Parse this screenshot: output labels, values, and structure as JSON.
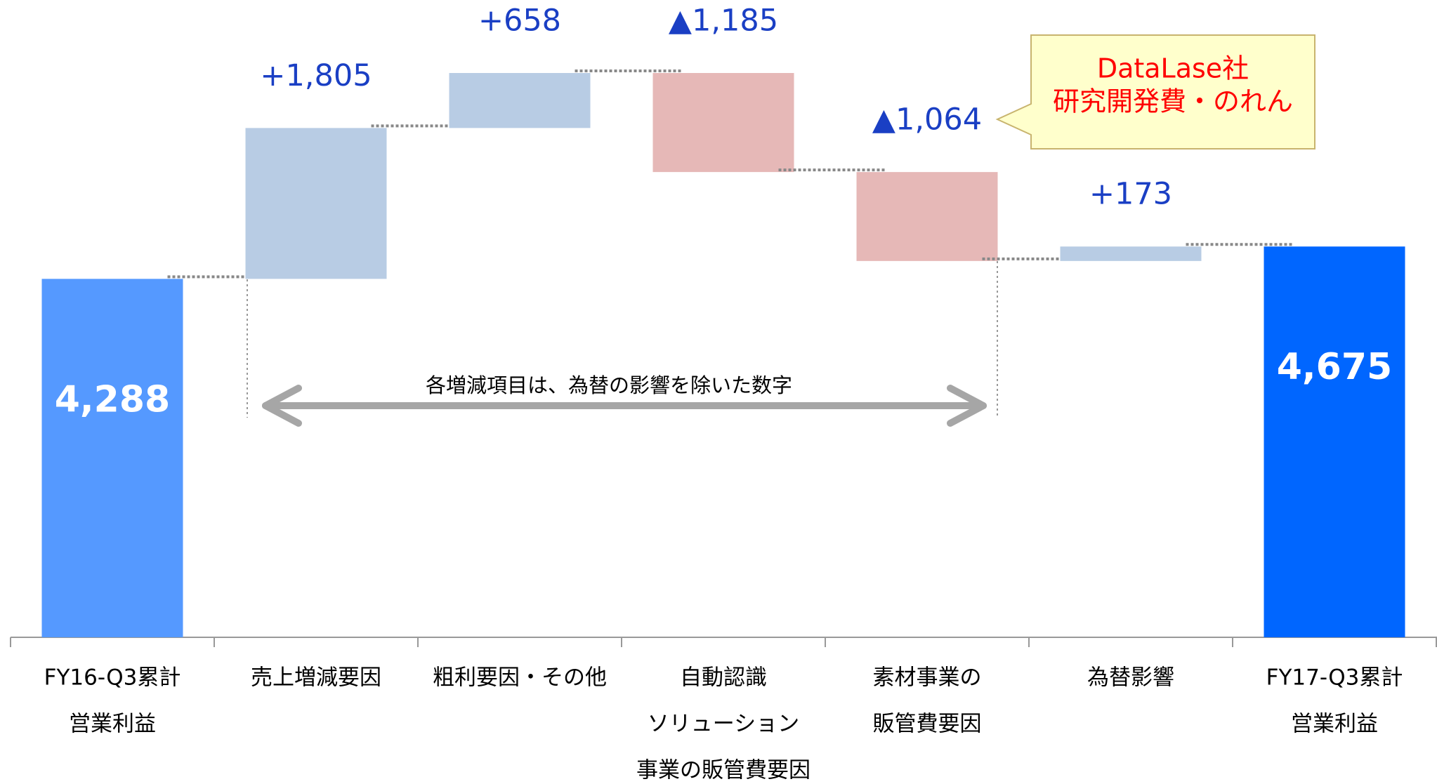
{
  "chart_data": {
    "type": "waterfall",
    "categories": [
      [
        "FY16-Q3累計",
        "営業利益"
      ],
      [
        "売上増減要因"
      ],
      [
        "粗利要因・その他"
      ],
      [
        "自動認識",
        "ソリューション",
        "事業の販管費要因"
      ],
      [
        "素材事業の",
        "販管費要因"
      ],
      [
        "為替影響"
      ],
      [
        "FY17-Q3累計",
        "営業利益"
      ]
    ],
    "values": [
      4288,
      1805,
      658,
      -1185,
      -1064,
      173,
      4675
    ],
    "value_labels": [
      "4,288",
      "+1,805",
      "+658",
      "▲1,185",
      "▲1,064",
      "+173",
      "4,675"
    ],
    "totals": [
      true,
      false,
      false,
      false,
      false,
      false,
      true
    ],
    "colors": {
      "start": "#5599ff",
      "end": "#0066ff",
      "increase": "#b8cce4",
      "decrease": "#e6b8b7"
    },
    "annotations": {
      "note": "各増減項目は、為替の影響を除いた数字",
      "callout": [
        "DataLase社",
        "研究開発費・のれん"
      ]
    }
  }
}
